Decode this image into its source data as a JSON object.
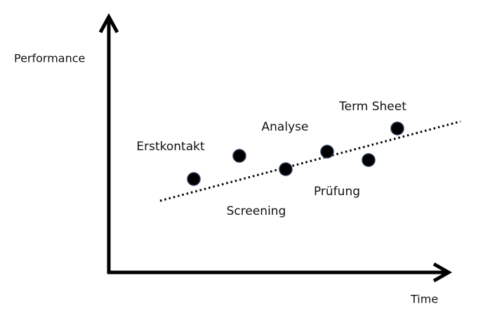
{
  "axes": {
    "y_label": "Performance",
    "x_label": "Time"
  },
  "stages": [
    {
      "label": "Erstkontakt"
    },
    {
      "label": "Screening"
    },
    {
      "label": "Analyse"
    },
    {
      "label": "Prüfung"
    },
    {
      "label": "Term Sheet"
    }
  ]
}
